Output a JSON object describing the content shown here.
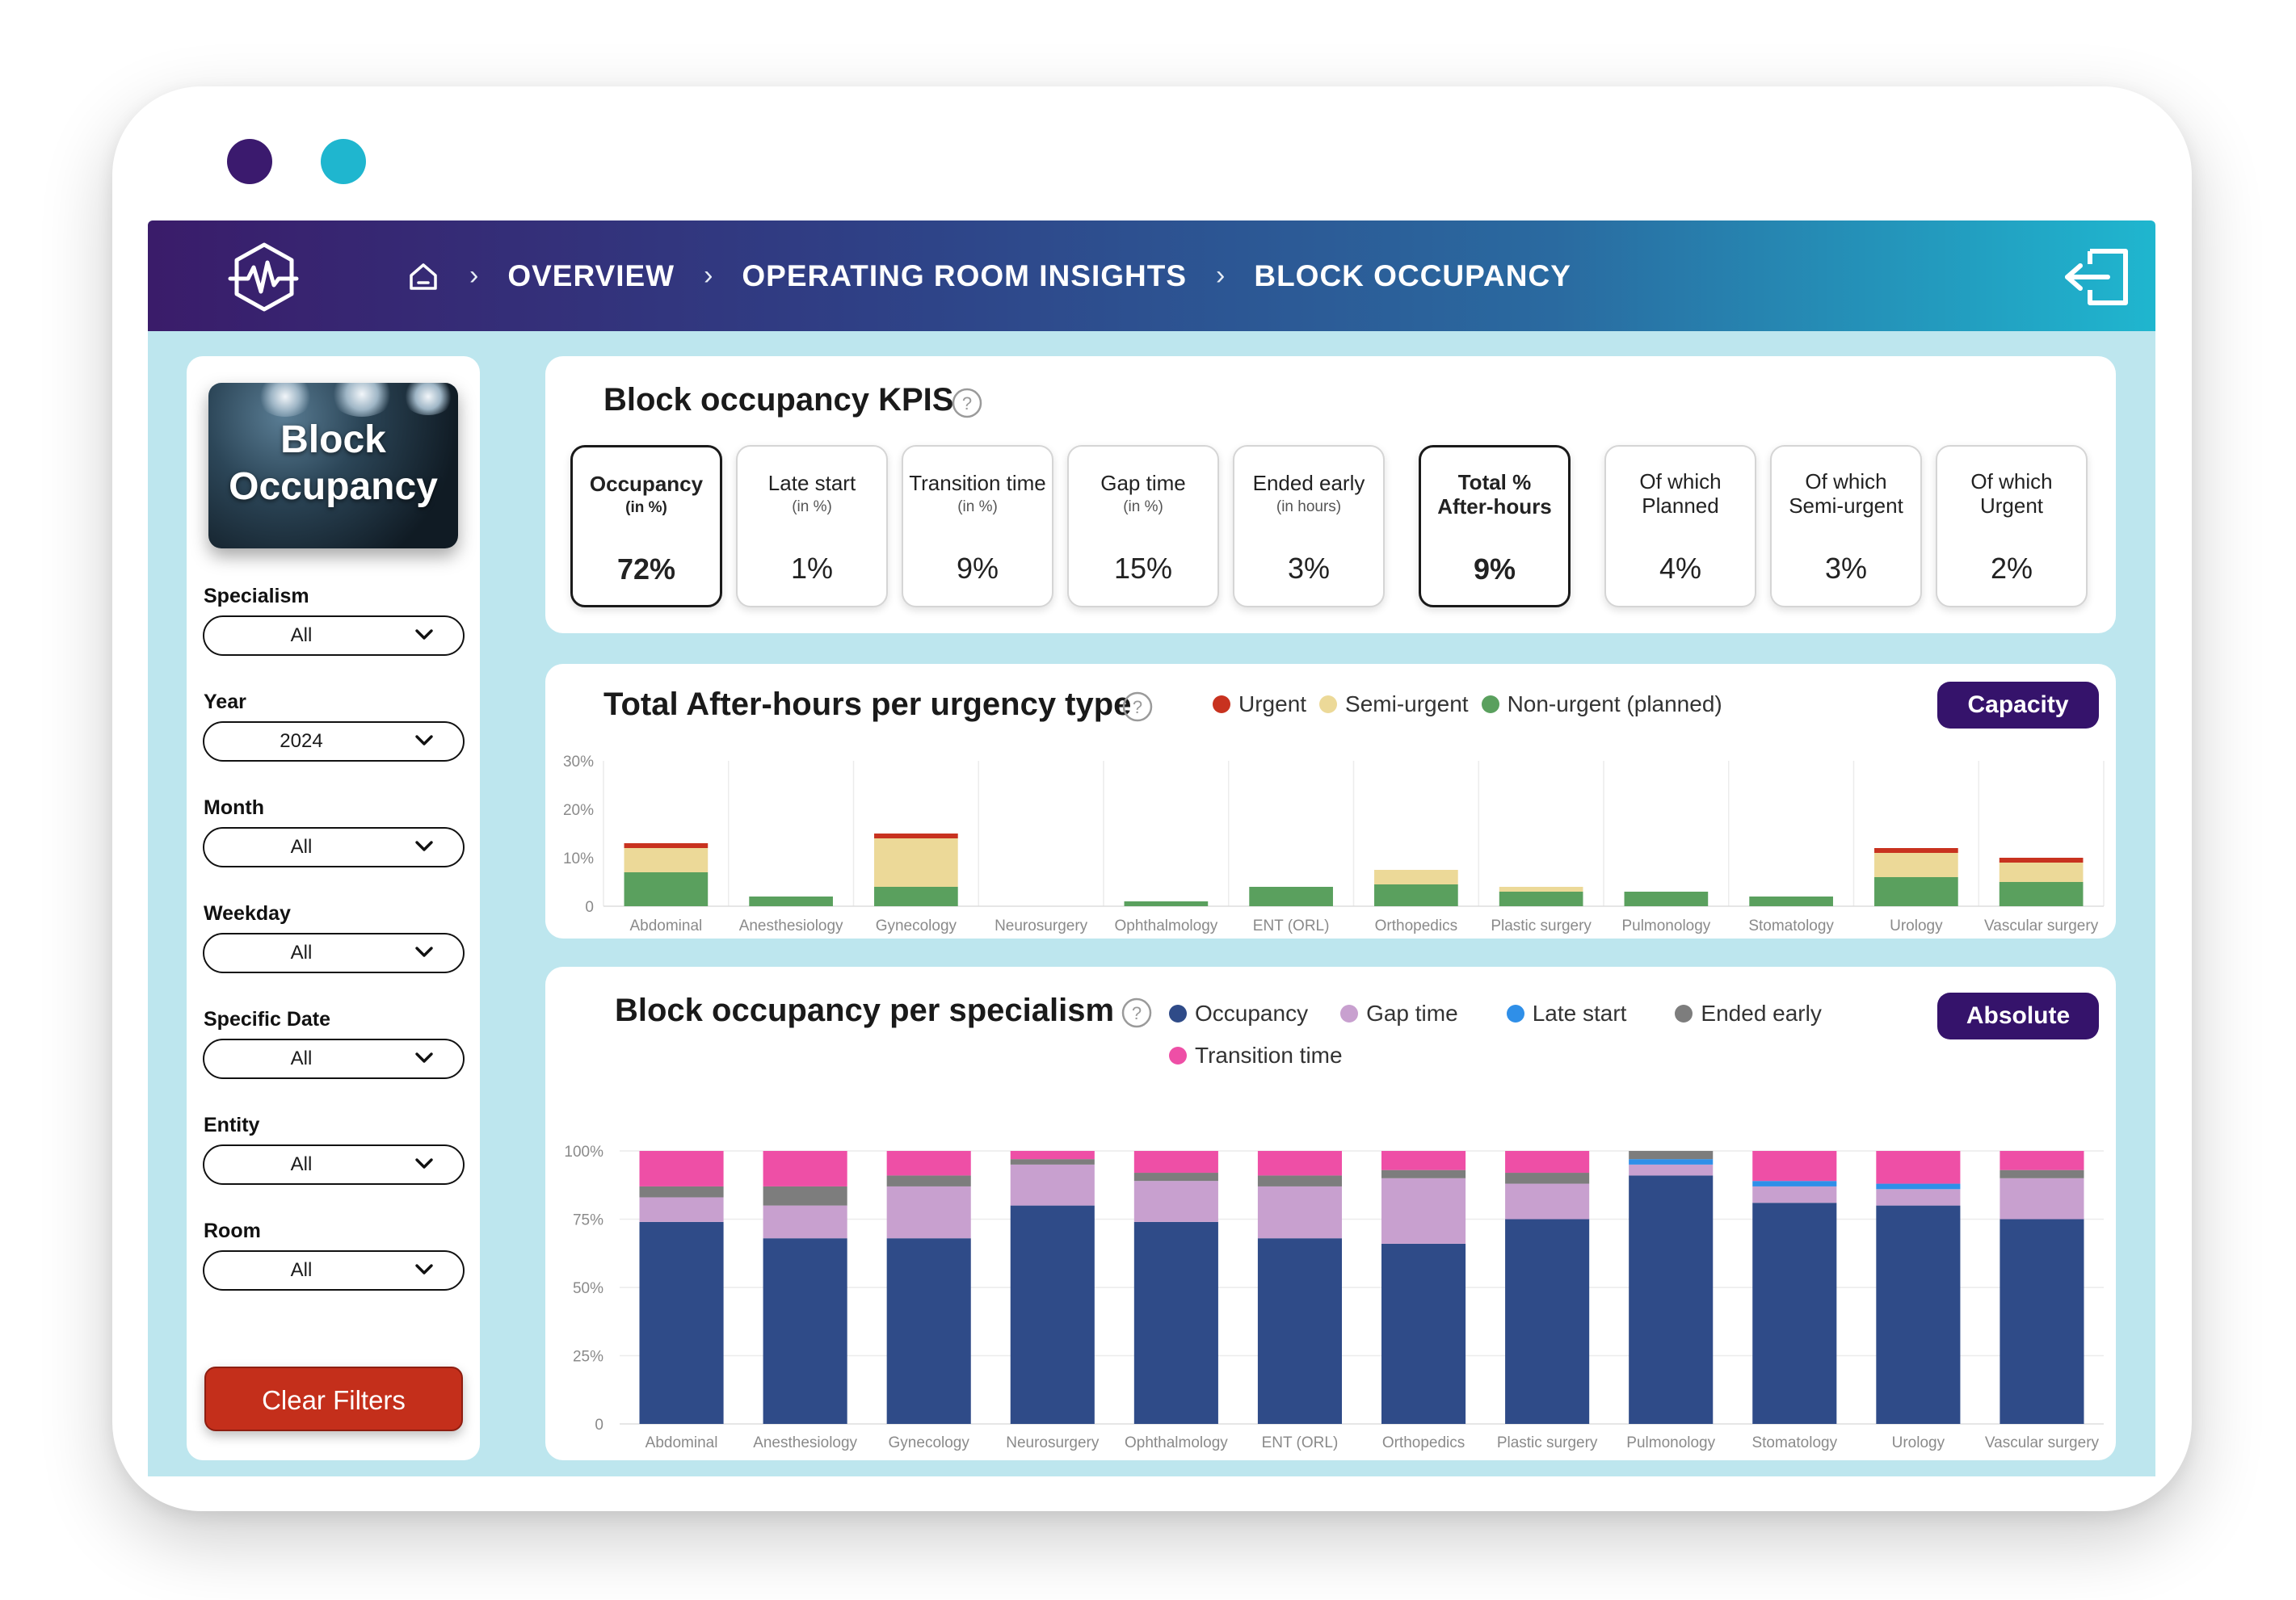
{
  "colors": {
    "urgent": "#c8321f",
    "semi_urgent": "#ecd998",
    "non_urgent": "#5aa05e",
    "occupancy": "#2f4b88",
    "gap_time": "#c8a0cf",
    "late_start": "#2f8fe8",
    "ended_early": "#7d7d7d",
    "transition_time": "#ee4fa6",
    "accent": "#35136b"
  },
  "icons": {
    "logo": "heartbeat-hexagon-icon",
    "home": "home-icon",
    "exit": "logout-icon",
    "help": "help-icon",
    "dropdown": "chevron-down-icon"
  },
  "breadcrumb": [
    "OVERVIEW",
    "OPERATING ROOM INSIGHTS",
    "BLOCK OCCUPANCY"
  ],
  "sidebar": {
    "hero_title": [
      "Block",
      "Occupancy"
    ],
    "filters": [
      {
        "label": "Specialism",
        "value": "All"
      },
      {
        "label": "Year",
        "value": "2024"
      },
      {
        "label": "Month",
        "value": "All"
      },
      {
        "label": "Weekday",
        "value": "All"
      },
      {
        "label": "Specific Date",
        "value": "All"
      },
      {
        "label": "Entity",
        "value": "All"
      },
      {
        "label": "Room",
        "value": "All"
      }
    ],
    "clear_label": "Clear Filters"
  },
  "kpis": {
    "title": "Block occupancy KPIS",
    "cards": [
      {
        "label": "Occupancy",
        "sub": "(in %)",
        "value": "72%",
        "bold": true
      },
      {
        "label": "Late start",
        "sub": "(in %)",
        "value": "1%",
        "bold": false
      },
      {
        "label": "Transition time",
        "sub": "(in %)",
        "value": "9%",
        "bold": false
      },
      {
        "label": "Gap time",
        "sub": "(in %)",
        "value": "15%",
        "bold": false
      },
      {
        "label": "Ended early",
        "sub": "(in hours)",
        "value": "3%",
        "bold": false
      },
      {
        "label": "Total %\nAfter-hours",
        "sub": "",
        "value": "9%",
        "bold": true
      },
      {
        "label": "Of which\nPlanned",
        "sub": "",
        "value": "4%",
        "bold": false
      },
      {
        "label": "Of which\nSemi-urgent",
        "sub": "",
        "value": "3%",
        "bold": false
      },
      {
        "label": "Of which\nUrgent",
        "sub": "",
        "value": "2%",
        "bold": false
      }
    ]
  },
  "after_hours": {
    "title": "Total After-hours per urgency type",
    "button_label": "Capacity",
    "legend": [
      "Urgent",
      "Semi-urgent",
      "Non-urgent (planned)"
    ]
  },
  "occupancy": {
    "title": "Block occupancy per specialism",
    "button_label": "Absolute",
    "legend": [
      "Occupancy",
      "Gap time",
      "Late start",
      "Ended early",
      "Transition time"
    ]
  },
  "chart_data": [
    {
      "type": "bar",
      "stacked": true,
      "title": "Total After-hours per urgency type",
      "categories": [
        "Abdominal",
        "Anesthesiology",
        "Gynecology",
        "Neurosurgery",
        "Ophthalmology",
        "ENT (ORL)",
        "Orthopedics",
        "Plastic surgery",
        "Pulmonology",
        "Stomatology",
        "Urology",
        "Vascular surgery"
      ],
      "y_ticks": [
        "0",
        "10%",
        "20%",
        "30%"
      ],
      "ylim": [
        0,
        30
      ],
      "grid": "vertical",
      "legend_position": "top",
      "series": [
        {
          "name": "Non-urgent (planned)",
          "values": [
            7,
            2,
            4,
            0,
            1,
            4,
            4.5,
            3,
            3,
            2,
            6,
            5
          ]
        },
        {
          "name": "Semi-urgent",
          "values": [
            5,
            0,
            10,
            0,
            0,
            0,
            3,
            1,
            0,
            0,
            5,
            4
          ]
        },
        {
          "name": "Urgent",
          "values": [
            1,
            0,
            1,
            0,
            0,
            0,
            0,
            0,
            0,
            0,
            1,
            1
          ]
        }
      ]
    },
    {
      "type": "bar",
      "stacked": true,
      "title": "Block occupancy per specialism",
      "categories": [
        "Abdominal",
        "Anesthesiology",
        "Gynecology",
        "Neurosurgery",
        "Ophthalmology",
        "ENT (ORL)",
        "Orthopedics",
        "Plastic surgery",
        "Pulmonology",
        "Stomatology",
        "Urology",
        "Vascular surgery"
      ],
      "y_ticks": [
        "0",
        "25%",
        "50%",
        "75%",
        "100%"
      ],
      "ylim": [
        0,
        100
      ],
      "grid": "horizontal",
      "legend_position": "top",
      "series": [
        {
          "name": "Occupancy",
          "values": [
            74,
            68,
            68,
            80,
            74,
            68,
            66,
            75,
            91,
            81,
            80,
            75
          ]
        },
        {
          "name": "Gap time",
          "values": [
            9,
            12,
            19,
            15,
            15,
            19,
            24,
            13,
            4,
            6,
            6,
            15
          ]
        },
        {
          "name": "Late start",
          "values": [
            0,
            0,
            0,
            0,
            0,
            0,
            0,
            0,
            2,
            2,
            2,
            0
          ]
        },
        {
          "name": "Ended early",
          "values": [
            4,
            7,
            4,
            2,
            3,
            4,
            3,
            4,
            3,
            0,
            0,
            3
          ]
        },
        {
          "name": "Transition time",
          "values": [
            13,
            13,
            9,
            3,
            8,
            9,
            7,
            8,
            0,
            11,
            12,
            7
          ]
        }
      ]
    }
  ]
}
